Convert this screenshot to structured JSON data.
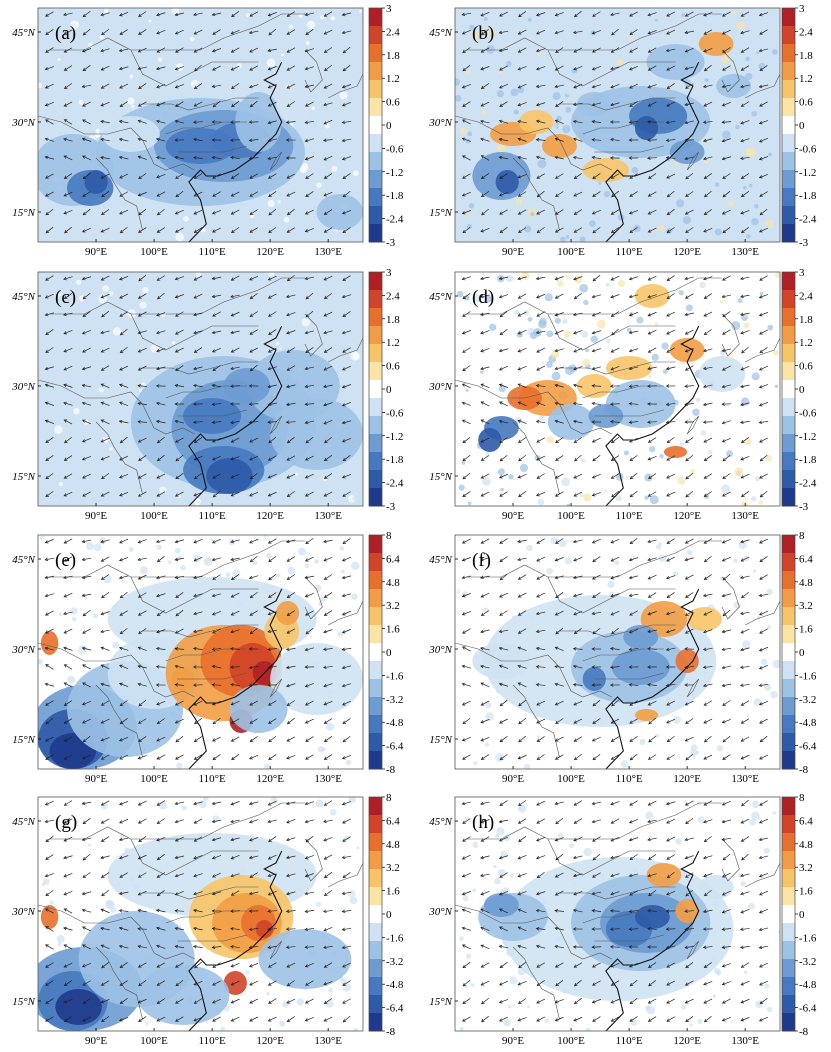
{
  "figure": {
    "lat_labels": [
      "45°N",
      "30°N",
      "15°N"
    ],
    "lon_labels": [
      "90°E",
      "100°E",
      "110°E",
      "120°E",
      "130°E"
    ],
    "lat_values": [
      45,
      30,
      15
    ],
    "lon_values": [
      90,
      100,
      110,
      120,
      130
    ],
    "lon_range": [
      80,
      136
    ],
    "lat_range": [
      10,
      49
    ]
  },
  "colorbars": {
    "small": {
      "ticks": [
        "3",
        "2.4",
        "1.8",
        "1.2",
        "0.6",
        "0",
        "-0.6",
        "-1.2",
        "-1.8",
        "-2.4",
        "-3"
      ]
    },
    "large": {
      "ticks": [
        "8",
        "6.4",
        "4.8",
        "3.2",
        "1.6",
        "0",
        "-1.6",
        "-3.2",
        "-4.8",
        "-6.4",
        "-8"
      ]
    }
  },
  "palette": [
    "#1f3a8c",
    "#2e5aa8",
    "#4679bf",
    "#6d9bd2",
    "#9dc2e6",
    "#cfe2f3",
    "#ffffff",
    "#fbe4a6",
    "#f8c468",
    "#f29d45",
    "#e8702d",
    "#d2442a",
    "#b01f26"
  ],
  "panels": [
    {
      "label": "(a)",
      "scale": "small",
      "pattern": "a"
    },
    {
      "label": "(b)",
      "scale": "small",
      "pattern": "b"
    },
    {
      "label": "(c)",
      "scale": "small",
      "pattern": "c"
    },
    {
      "label": "(d)",
      "scale": "small",
      "pattern": "d"
    },
    {
      "label": "(e)",
      "scale": "large",
      "pattern": "e"
    },
    {
      "label": "(f)",
      "scale": "large",
      "pattern": "f"
    },
    {
      "label": "(g)",
      "scale": "large",
      "pattern": "g"
    },
    {
      "label": "(h)",
      "scale": "large",
      "pattern": "h"
    }
  ]
}
